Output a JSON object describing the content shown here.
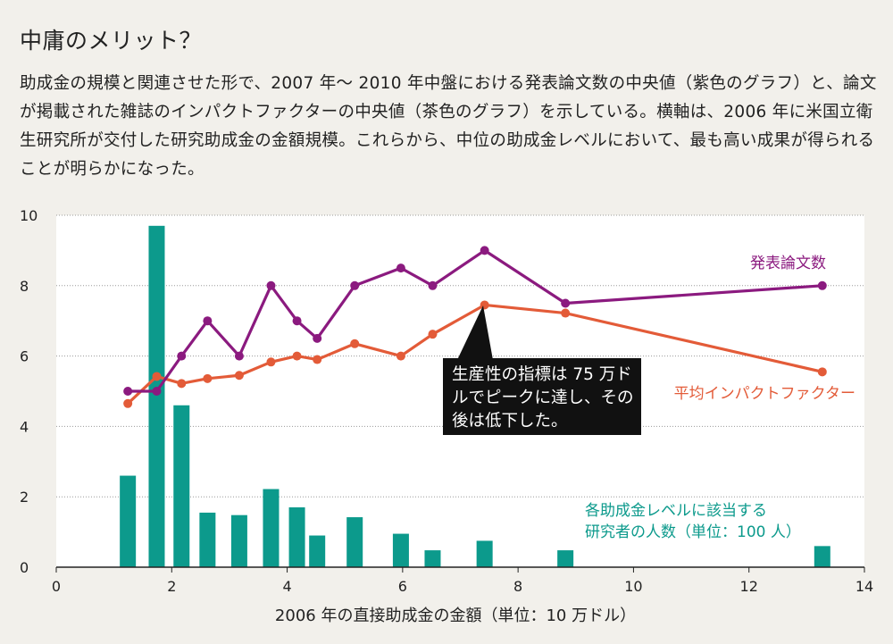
{
  "title": "中庸のメリット？",
  "description": "助成金の規模と関連させた形で、2007 年〜 2010 年中盤における発表論文数の中央値（紫色のグラフ）と、論文が掲載された雑誌のインパクトファクターの中央値（茶色のグラフ）を示している。横軸は、2006 年に米国立衛生研究所が交付した研究助成金の金額規模。これらから、中位の助成金レベルにおいて、最も高い成果が得られることが明らかになった。",
  "callout": "生産性の指標は 75 万ドルでピークに達し、その後は低下した。",
  "colors": {
    "papers": "#8b1a7f",
    "impact": "#e35b38",
    "bars": "#0c9a8c",
    "callout_bg": "#111111",
    "plot_bg": "#ffffff",
    "page_bg": "#f2f0eb"
  },
  "chart_data": {
    "type": "bar+line",
    "xlabel": "2006 年の直接助成金の金額（単位：10 万ドル）",
    "ylabel": "",
    "xlim": [
      0,
      14
    ],
    "ylim": [
      0,
      10
    ],
    "xticks": [
      0,
      2,
      4,
      6,
      8,
      10,
      12,
      14
    ],
    "yticks": [
      0,
      2,
      4,
      6,
      8,
      10
    ],
    "grid": "horizontal dotted",
    "series": [
      {
        "name": "発表論文数",
        "kind": "line",
        "x": [
          1.24,
          1.74,
          2.17,
          2.62,
          3.17,
          3.72,
          4.17,
          4.52,
          5.17,
          5.97,
          6.52,
          7.42,
          8.82,
          13.27
        ],
        "y": [
          5.0,
          5.0,
          6.0,
          7.0,
          6.0,
          8.0,
          7.0,
          6.5,
          8.0,
          8.5,
          8.0,
          9.0,
          7.5,
          8.0
        ]
      },
      {
        "name": "平均インパクトファクター",
        "kind": "line",
        "x": [
          1.24,
          1.74,
          2.17,
          2.62,
          3.17,
          3.72,
          4.17,
          4.52,
          5.17,
          5.97,
          6.52,
          7.42,
          8.82,
          13.27
        ],
        "y": [
          4.65,
          5.42,
          5.22,
          5.36,
          5.45,
          5.83,
          6.0,
          5.9,
          6.35,
          6.0,
          6.62,
          7.45,
          7.22,
          5.55
        ]
      },
      {
        "name": "各助成金レベルに該当する研究者の人数（単位：100 人）",
        "kind": "bar",
        "x": [
          1.24,
          1.74,
          2.17,
          2.62,
          3.17,
          3.72,
          4.17,
          4.52,
          5.17,
          5.97,
          6.52,
          7.42,
          8.82,
          13.27
        ],
        "y": [
          2.6,
          9.7,
          4.6,
          1.55,
          1.48,
          2.22,
          1.7,
          0.9,
          1.42,
          0.95,
          0.48,
          0.75,
          0.48,
          0.6
        ]
      }
    ]
  }
}
